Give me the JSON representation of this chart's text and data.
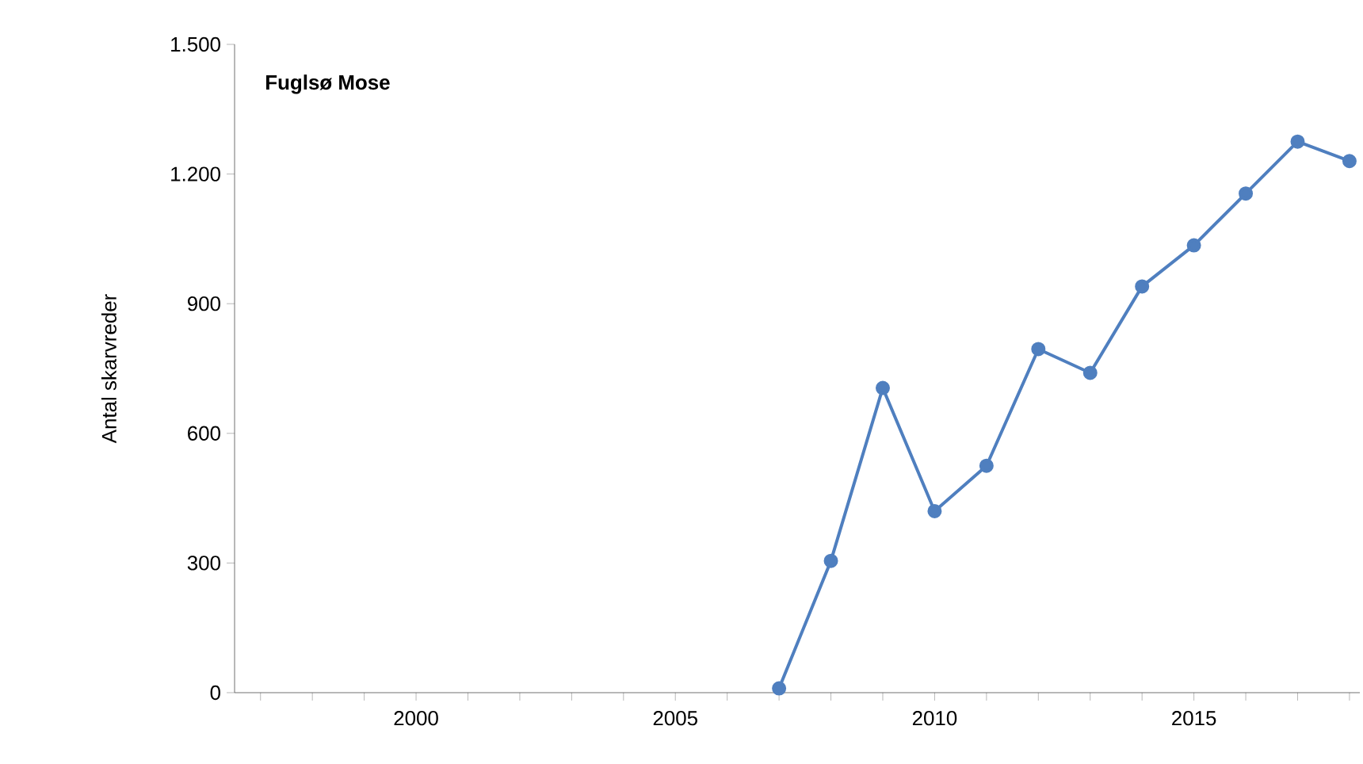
{
  "chart_data": {
    "type": "line",
    "title": "Fuglsø Mose",
    "ylabel": "Antal skarvreder",
    "x": [
      2007,
      2008,
      2009,
      2010,
      2011,
      2012,
      2013,
      2014,
      2015,
      2016,
      2017,
      2018
    ],
    "series": [
      {
        "color": "#4f7fbf",
        "values": [
          10,
          305,
          705,
          420,
          525,
          795,
          740,
          940,
          1035,
          1155,
          1275,
          1230
        ]
      }
    ],
    "xlim": [
      1996.5,
      2018.2
    ],
    "xticks": [
      {
        "value": 1997,
        "label": null
      },
      {
        "value": 1998,
        "label": null
      },
      {
        "value": 1999,
        "label": null
      },
      2000,
      {
        "value": 2001,
        "label": null
      },
      {
        "value": 2002,
        "label": null
      },
      {
        "value": 2003,
        "label": null
      },
      {
        "value": 2004,
        "label": null
      },
      2005,
      {
        "value": 2006,
        "label": null
      },
      {
        "value": 2007,
        "label": null
      },
      {
        "value": 2008,
        "label": null
      },
      {
        "value": 2009,
        "label": null
      },
      2010,
      {
        "value": 2011,
        "label": null
      },
      {
        "value": 2012,
        "label": null
      },
      {
        "value": 2013,
        "label": null
      },
      {
        "value": 2014,
        "label": null
      },
      2015,
      {
        "value": 2016,
        "label": null
      },
      {
        "value": 2017,
        "label": null
      },
      {
        "value": 2018,
        "label": null
      }
    ],
    "ylim": [
      0,
      1500
    ],
    "yticks": [
      0,
      300,
      600,
      900,
      {
        "value": 1200,
        "label": "1.200"
      },
      {
        "value": 1500,
        "label": "1.500"
      }
    ],
    "grid": false,
    "marker": "circle",
    "line_style": "solid"
  }
}
